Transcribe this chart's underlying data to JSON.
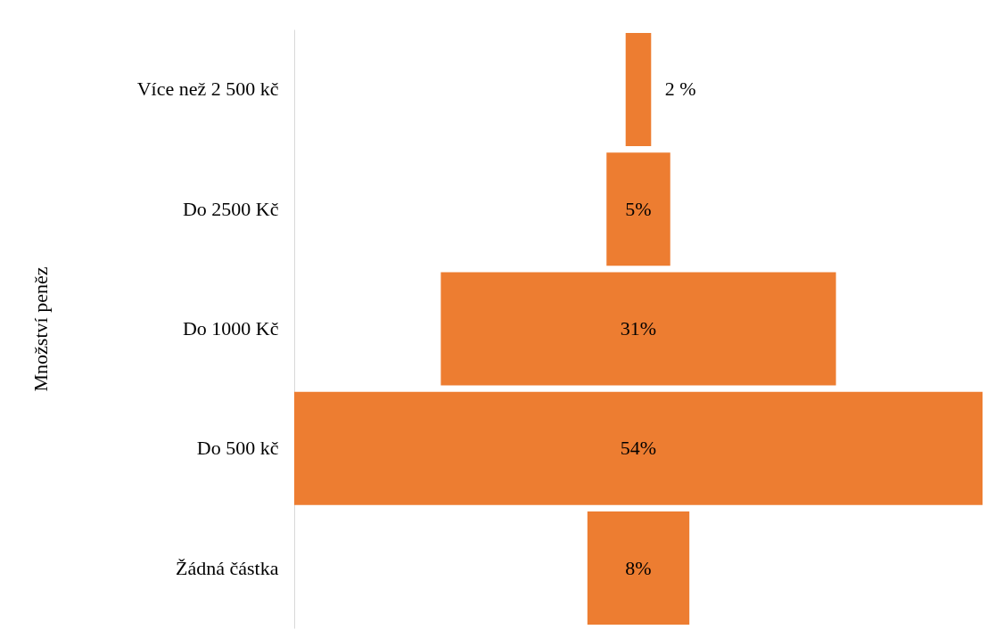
{
  "chart_data": {
    "type": "other",
    "ylabel": "Množství peněz",
    "categories": [
      "Více než 2 500 kč",
      "Do 2500 Kč",
      "Do 1000 Kč",
      "Do 500 kč",
      "Žádná částka"
    ],
    "values": [
      2,
      5,
      31,
      54,
      8
    ],
    "value_labels": [
      "2 %",
      "5%",
      "31%",
      "54%",
      "8%"
    ],
    "color": "#ed7d31"
  }
}
